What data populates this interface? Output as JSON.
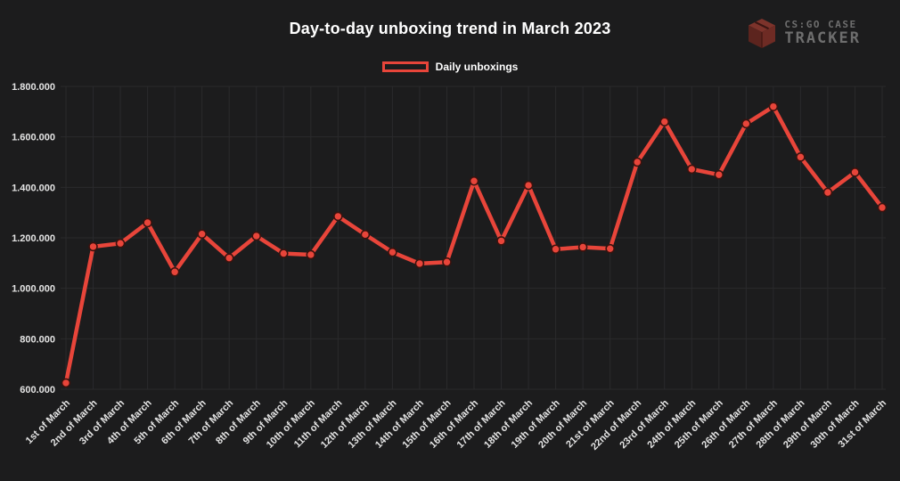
{
  "header": {
    "title": "Day-to-day unboxing trend in March 2023",
    "logo_line1": "CS:GO CASE",
    "logo_line2": "TRACKER"
  },
  "legend": {
    "label": "Daily unboxings"
  },
  "colors": {
    "background": "#1c1c1d",
    "grid": "#2a2a2c",
    "text": "#e4e4e4",
    "accent": "#e8453a",
    "marker_ring": "#3a120e",
    "logo_text": "#6e6e6e",
    "logo_cube_top": "#7d332b",
    "logo_cube_left": "#5c241e",
    "logo_cube_right": "#6e2b24"
  },
  "chart_data": {
    "type": "line",
    "title": "Day-to-day unboxing trend in March 2023",
    "xlabel": "",
    "ylabel": "",
    "grid": true,
    "legend_position": "top-center",
    "ylim": [
      600000,
      1800000
    ],
    "ytick_values": [
      1800000,
      1600000,
      1400000,
      1200000,
      1000000,
      800000,
      600000
    ],
    "ytick_labels": [
      "1.800.000",
      "1.600.000",
      "1.400.000",
      "1.200.000",
      "1.000.000",
      "800.000",
      "600.000"
    ],
    "categories": [
      "1st of March",
      "2nd of March",
      "3rd of March",
      "4th of March",
      "5th of March",
      "6th of March",
      "7th of March",
      "8th of March",
      "9th of March",
      "10th of March",
      "11th of March",
      "12th of March",
      "13th of March",
      "14th of March",
      "15th of March",
      "16th of March",
      "17th of March",
      "18th of March",
      "19th of March",
      "20th of March",
      "21st of March",
      "22nd of March",
      "23rd of March",
      "24th of March",
      "25th of March",
      "26th of March",
      "27th of March",
      "28th of March",
      "29th of March",
      "30th of March",
      "31st of March"
    ],
    "series": [
      {
        "name": "Daily unboxings",
        "color": "#e8453a",
        "values": [
          625000,
          1165000,
          1178000,
          1260000,
          1065000,
          1215000,
          1120000,
          1207000,
          1138000,
          1133000,
          1285000,
          1213000,
          1143000,
          1098000,
          1104000,
          1425000,
          1188000,
          1408000,
          1155000,
          1163000,
          1157000,
          1500000,
          1660000,
          1472000,
          1450000,
          1652000,
          1720000,
          1520000,
          1380000,
          1460000,
          1320000
        ]
      }
    ]
  }
}
